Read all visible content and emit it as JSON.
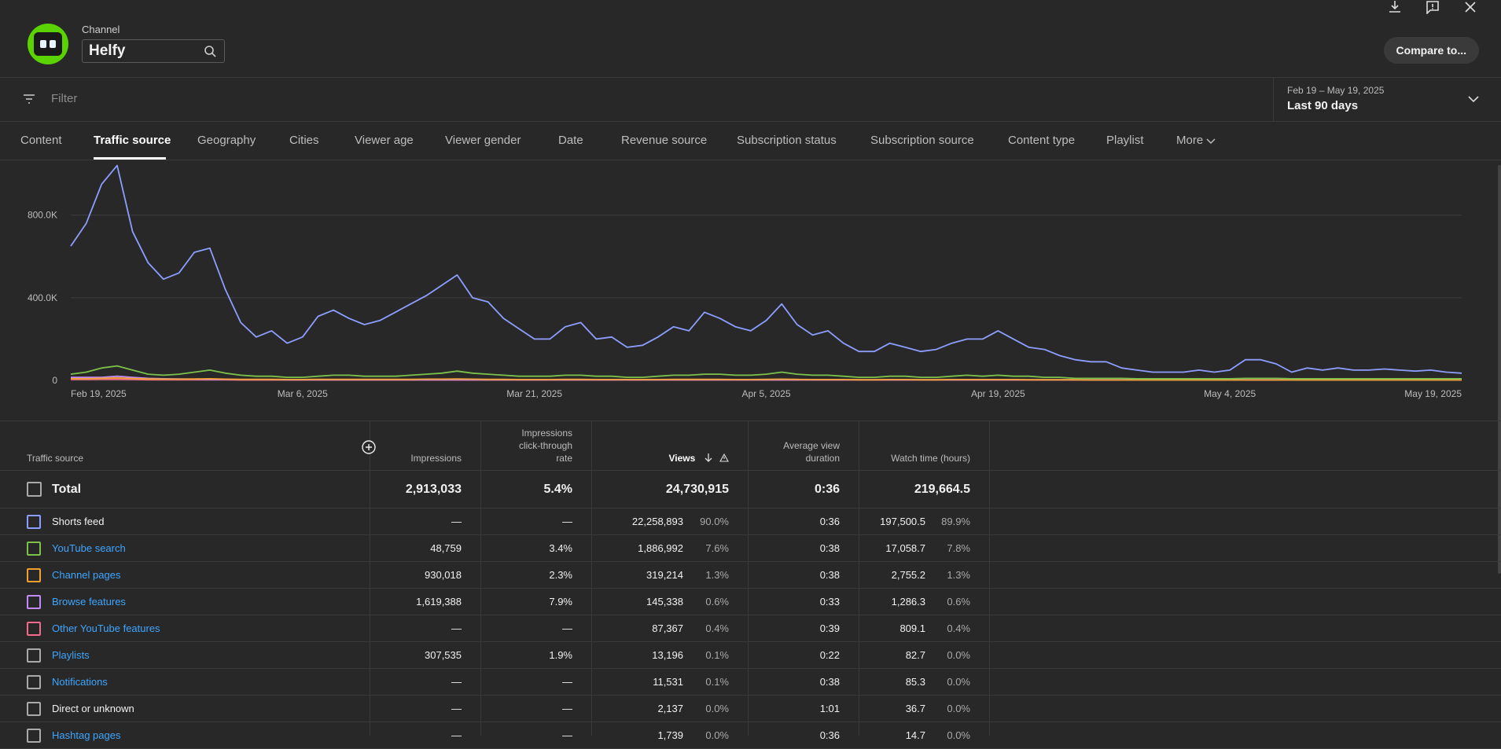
{
  "header": {
    "channel_label": "Channel",
    "channel_name": "Helfy",
    "compare_label": "Compare to..."
  },
  "filter": {
    "placeholder": "Filter"
  },
  "date_range": {
    "sub": "Feb 19 – May 19, 2025",
    "main": "Last 90 days"
  },
  "tabs": [
    "Content",
    "Traffic source",
    "Geography",
    "Cities",
    "Viewer age",
    "Viewer gender",
    "Date",
    "Revenue source",
    "Subscription status",
    "Subscription source",
    "Content type",
    "Playlist",
    "More"
  ],
  "chart_data": {
    "type": "line",
    "y_ticks": [
      "800.0K",
      "400.0K",
      "0"
    ],
    "x_ticks": [
      "Feb 19, 2025",
      "Mar 6, 2025",
      "Mar 21, 2025",
      "Apr 5, 2025",
      "Apr 19, 2025",
      "May 4, 2025",
      "May 19, 2025"
    ],
    "ylim": [
      0,
      1050000
    ],
    "series": [
      {
        "name": "Shorts feed",
        "color": "#8c9eff",
        "values": [
          650000,
          760000,
          950000,
          1040000,
          720000,
          570000,
          490000,
          520000,
          620000,
          640000,
          440000,
          280000,
          210000,
          240000,
          180000,
          210000,
          310000,
          340000,
          300000,
          270000,
          290000,
          330000,
          370000,
          410000,
          460000,
          510000,
          400000,
          380000,
          300000,
          250000,
          200000,
          200000,
          260000,
          280000,
          200000,
          210000,
          160000,
          170000,
          210000,
          260000,
          240000,
          330000,
          300000,
          260000,
          240000,
          290000,
          370000,
          270000,
          220000,
          240000,
          180000,
          140000,
          140000,
          180000,
          160000,
          140000,
          150000,
          180000,
          200000,
          200000,
          240000,
          200000,
          160000,
          150000,
          120000,
          100000,
          90000,
          90000,
          60000,
          50000,
          40000,
          40000,
          40000,
          50000,
          40000,
          50000,
          100000,
          100000,
          80000,
          40000,
          60000,
          50000,
          60000,
          50000,
          50000,
          55000,
          50000,
          45000,
          50000,
          40000,
          35000
        ]
      },
      {
        "name": "YouTube search",
        "color": "#7cc24a",
        "values": [
          30000,
          40000,
          60000,
          70000,
          50000,
          30000,
          25000,
          30000,
          40000,
          50000,
          35000,
          25000,
          20000,
          20000,
          15000,
          15000,
          20000,
          25000,
          25000,
          20000,
          20000,
          20000,
          25000,
          30000,
          35000,
          45000,
          35000,
          30000,
          25000,
          20000,
          20000,
          20000,
          25000,
          25000,
          20000,
          20000,
          15000,
          15000,
          20000,
          25000,
          25000,
          30000,
          30000,
          25000,
          25000,
          30000,
          40000,
          30000,
          25000,
          25000,
          20000,
          15000,
          15000,
          20000,
          20000,
          15000,
          15000,
          20000,
          25000,
          20000,
          25000,
          20000,
          20000,
          15000,
          15000,
          10000,
          10000,
          10000,
          10000,
          8000,
          8000,
          8000,
          8000,
          8000,
          8000,
          8000,
          10000,
          10000,
          10000,
          8000,
          8000,
          8000,
          8000,
          8000,
          8000,
          8000,
          8000,
          8000,
          8000,
          8000,
          8000
        ]
      },
      {
        "name": "Channel pages",
        "color": "#f0a030",
        "values": [
          8000,
          8000,
          10000,
          12000,
          9000,
          7000,
          6000,
          6000,
          7000,
          8000,
          6000,
          5000,
          5000,
          5000,
          4000,
          4000,
          5000,
          5000,
          5000,
          5000,
          5000,
          5000,
          5000,
          6000,
          6000,
          7000,
          6000,
          5000,
          5000,
          4000,
          4000,
          4000,
          5000,
          5000,
          4000,
          4000,
          4000,
          4000,
          4000,
          5000,
          5000,
          5000,
          5000,
          4000,
          4000,
          5000,
          6000,
          5000,
          4000,
          4000,
          4000,
          3000,
          3000,
          4000,
          4000,
          3000,
          3000,
          4000,
          4000,
          4000,
          4000,
          4000,
          3000,
          3000,
          3000,
          3000,
          2000,
          2000,
          2000,
          2000,
          2000,
          2000,
          2000,
          2000,
          2000,
          2000,
          2000,
          2000,
          2000,
          2000,
          2000,
          2000,
          2000,
          2000,
          2000,
          2000,
          2000,
          2000,
          2000,
          2000,
          2000
        ]
      },
      {
        "name": "Browse features",
        "color": "#c58af9",
        "values": [
          15000,
          15000,
          15000,
          20000,
          15000,
          10000,
          8000,
          7000,
          6000,
          5000,
          5000,
          4000,
          4000,
          4000,
          3000,
          3000,
          3000,
          3000,
          3000,
          3000,
          3000,
          3000,
          3000,
          3000,
          3000,
          3000,
          3000,
          3000,
          3000,
          3000,
          3000,
          3000,
          3000,
          3000,
          3000,
          3000,
          3000,
          3000,
          3000,
          3000,
          3000,
          3000,
          3000,
          3000,
          3000,
          3000,
          3000,
          3000,
          3000,
          3000,
          3000,
          3000,
          3000,
          3000,
          3000,
          3000,
          3000,
          3000,
          3000,
          3000,
          3000,
          3000,
          3000,
          3000,
          3000,
          3000,
          3000,
          3000,
          3000,
          3000,
          3000,
          3000,
          3000,
          3000,
          3000,
          3000,
          3000,
          3000,
          3000,
          3000,
          3000,
          3000,
          3000,
          3000,
          3000,
          3000,
          3000,
          3000,
          3000,
          3000,
          3000
        ]
      },
      {
        "name": "Other YouTube features",
        "color": "#f06a8a",
        "values": [
          4000,
          4000,
          5000,
          5000,
          4000,
          3000,
          3000,
          3000,
          3000,
          3000,
          3000,
          2000,
          2000,
          2000,
          2000,
          2000,
          2000,
          2000,
          2000,
          2000,
          2000,
          2000,
          2000,
          2000,
          2000,
          2000,
          2000,
          2000,
          2000,
          2000,
          2000,
          2000,
          2000,
          2000,
          2000,
          2000,
          2000,
          2000,
          2000,
          2000,
          2000,
          2000,
          2000,
          2000,
          2000,
          2000,
          2000,
          2000,
          2000,
          2000,
          2000,
          2000,
          2000,
          2000,
          2000,
          2000,
          2000,
          2000,
          2000,
          2000,
          2000,
          2000,
          2000,
          2000,
          2000,
          2000,
          2000,
          2000,
          2000,
          2000,
          2000,
          2000,
          2000,
          2000,
          2000,
          2000,
          2000,
          2000,
          2000,
          2000,
          2000,
          2000,
          2000,
          2000,
          2000,
          2000,
          2000,
          2000,
          2000,
          2000,
          2000
        ]
      }
    ]
  },
  "table": {
    "headers": {
      "source": "Traffic source",
      "impressions": "Impressions",
      "ctr_l1": "Impressions",
      "ctr_l2": "click-through",
      "ctr_l3": "rate",
      "views": "Views",
      "avd_l1": "Average view",
      "avd_l2": "duration",
      "watch": "Watch time (hours)"
    },
    "total": {
      "label": "Total",
      "impressions": "2,913,033",
      "ctr": "5.4%",
      "views": "24,730,915",
      "avd": "0:36",
      "watch": "219,664.5"
    },
    "rows": [
      {
        "source": "Shorts feed",
        "link": false,
        "color": "#8c9eff",
        "impressions": "—",
        "ctr": "—",
        "views": "22,258,893",
        "views_pct": "90.0%",
        "avd": "0:36",
        "watch": "197,500.5",
        "watch_pct": "89.9%"
      },
      {
        "source": "YouTube search",
        "link": true,
        "color": "#7cc24a",
        "impressions": "48,759",
        "ctr": "3.4%",
        "views": "1,886,992",
        "views_pct": "7.6%",
        "avd": "0:38",
        "watch": "17,058.7",
        "watch_pct": "7.8%"
      },
      {
        "source": "Channel pages",
        "link": true,
        "color": "#f0a030",
        "impressions": "930,018",
        "ctr": "2.3%",
        "views": "319,214",
        "views_pct": "1.3%",
        "avd": "0:38",
        "watch": "2,755.2",
        "watch_pct": "1.3%"
      },
      {
        "source": "Browse features",
        "link": true,
        "color": "#c58af9",
        "impressions": "1,619,388",
        "ctr": "7.9%",
        "views": "145,338",
        "views_pct": "0.6%",
        "avd": "0:33",
        "watch": "1,286.3",
        "watch_pct": "0.6%"
      },
      {
        "source": "Other YouTube features",
        "link": true,
        "color": "#f06a8a",
        "impressions": "—",
        "ctr": "—",
        "views": "87,367",
        "views_pct": "0.4%",
        "avd": "0:39",
        "watch": "809.1",
        "watch_pct": "0.4%"
      },
      {
        "source": "Playlists",
        "link": true,
        "color": "#aaaaaa",
        "impressions": "307,535",
        "ctr": "1.9%",
        "views": "13,196",
        "views_pct": "0.1%",
        "avd": "0:22",
        "watch": "82.7",
        "watch_pct": "0.0%"
      },
      {
        "source": "Notifications",
        "link": true,
        "color": "#aaaaaa",
        "impressions": "—",
        "ctr": "—",
        "views": "11,531",
        "views_pct": "0.1%",
        "avd": "0:38",
        "watch": "85.3",
        "watch_pct": "0.0%"
      },
      {
        "source": "Direct or unknown",
        "link": false,
        "color": "#aaaaaa",
        "impressions": "—",
        "ctr": "—",
        "views": "2,137",
        "views_pct": "0.0%",
        "avd": "1:01",
        "watch": "36.7",
        "watch_pct": "0.0%"
      },
      {
        "source": "Hashtag pages",
        "link": true,
        "color": "#aaaaaa",
        "impressions": "—",
        "ctr": "—",
        "views": "1,739",
        "views_pct": "0.0%",
        "avd": "0:36",
        "watch": "14.7",
        "watch_pct": "0.0%"
      }
    ]
  }
}
